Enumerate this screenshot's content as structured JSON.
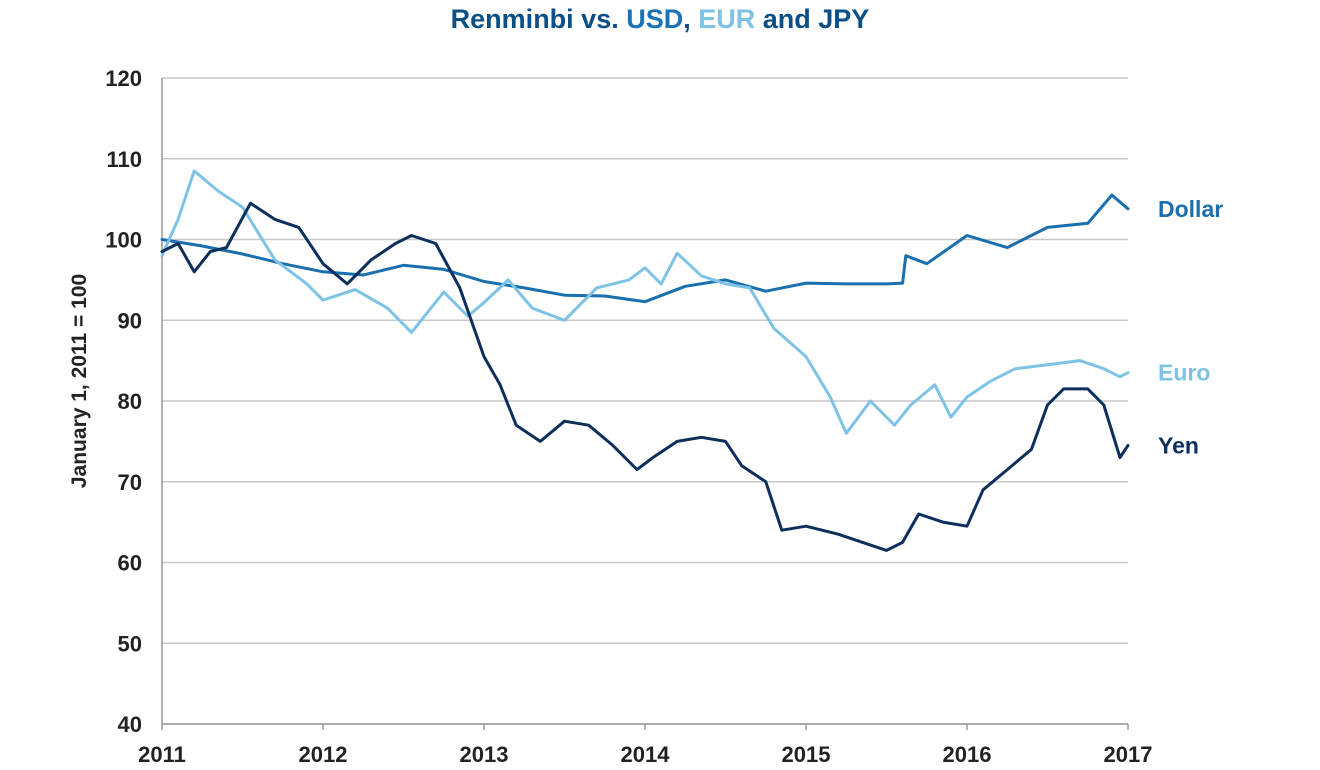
{
  "chart_data": {
    "type": "line",
    "title_parts": [
      {
        "text": "Renminbi vs. ",
        "color": "#0b4f86"
      },
      {
        "text": "USD",
        "color": "#1a73b5"
      },
      {
        "text": ", ",
        "color": "#0b4f86"
      },
      {
        "text": "EUR",
        "color": "#7ec3e6"
      },
      {
        "text": " and JPY",
        "color": "#0b4f86"
      }
    ],
    "ylabel": "January 1, 2011 = 100",
    "xlabel": "",
    "xlim": [
      2011,
      2017
    ],
    "ylim": [
      40,
      120
    ],
    "x_ticks": [
      "2011",
      "2012",
      "2013",
      "2014",
      "2015",
      "2016",
      "2017"
    ],
    "y_ticks": [
      "40",
      "50",
      "60",
      "70",
      "80",
      "90",
      "100",
      "110",
      "120"
    ],
    "grid": "horizontal",
    "legend": "inline-right",
    "series": [
      {
        "name": "Dollar",
        "color": "#1a6fae",
        "x": [
          2011.0,
          2011.25,
          2011.5,
          2011.75,
          2012.0,
          2012.25,
          2012.5,
          2012.75,
          2013.0,
          2013.25,
          2013.5,
          2013.75,
          2014.0,
          2014.25,
          2014.5,
          2014.75,
          2015.0,
          2015.25,
          2015.5,
          2015.6,
          2015.62,
          2015.75,
          2016.0,
          2016.25,
          2016.5,
          2016.75,
          2016.9,
          2017.0
        ],
        "values": [
          100,
          99.2,
          98.2,
          97.0,
          96.0,
          95.6,
          96.8,
          96.3,
          94.8,
          94.0,
          93.1,
          93.0,
          92.3,
          94.2,
          95.0,
          93.6,
          94.6,
          94.5,
          94.5,
          94.6,
          98.0,
          97.0,
          100.5,
          99.0,
          101.5,
          102.0,
          105.5,
          103.8
        ]
      },
      {
        "name": "Euro",
        "color": "#7ec3e6",
        "x": [
          2011.0,
          2011.1,
          2011.2,
          2011.35,
          2011.5,
          2011.7,
          2011.9,
          2012.0,
          2012.2,
          2012.4,
          2012.55,
          2012.75,
          2012.9,
          2013.0,
          2013.15,
          2013.3,
          2013.5,
          2013.7,
          2013.9,
          2014.0,
          2014.1,
          2014.2,
          2014.35,
          2014.5,
          2014.65,
          2014.8,
          2015.0,
          2015.15,
          2015.25,
          2015.4,
          2015.55,
          2015.65,
          2015.8,
          2015.9,
          2016.0,
          2016.15,
          2016.3,
          2016.5,
          2016.7,
          2016.85,
          2016.95,
          2017.0
        ],
        "values": [
          98,
          102.5,
          108.5,
          106,
          104,
          97.5,
          94.5,
          92.5,
          93.8,
          91.5,
          88.5,
          93.5,
          90.5,
          92.2,
          95,
          91.5,
          90,
          94,
          95,
          96.5,
          94.5,
          98.3,
          95.5,
          94.5,
          94,
          89,
          85.5,
          80.5,
          76,
          80,
          77,
          79.5,
          82,
          78,
          80.5,
          82.5,
          84,
          84.5,
          85,
          84,
          83,
          83.5
        ]
      },
      {
        "name": "Yen",
        "color": "#0c2f5c",
        "x": [
          2011.0,
          2011.1,
          2011.2,
          2011.3,
          2011.4,
          2011.55,
          2011.7,
          2011.85,
          2012.0,
          2012.15,
          2012.3,
          2012.45,
          2012.55,
          2012.7,
          2012.85,
          2013.0,
          2013.1,
          2013.2,
          2013.35,
          2013.5,
          2013.65,
          2013.8,
          2013.95,
          2014.05,
          2014.2,
          2014.35,
          2014.5,
          2014.6,
          2014.75,
          2014.85,
          2015.0,
          2015.2,
          2015.35,
          2015.5,
          2015.6,
          2015.7,
          2015.85,
          2016.0,
          2016.1,
          2016.25,
          2016.4,
          2016.5,
          2016.6,
          2016.75,
          2016.85,
          2016.95,
          2017.0
        ],
        "values": [
          98.5,
          99.5,
          96,
          98.5,
          99,
          104.5,
          102.5,
          101.5,
          97,
          94.5,
          97.5,
          99.5,
          100.5,
          99.5,
          94,
          85.5,
          82,
          77,
          75,
          77.5,
          77,
          74.5,
          71.5,
          73,
          75,
          75.5,
          75,
          72,
          70,
          64,
          64.5,
          63.5,
          62.5,
          61.5,
          62.5,
          66,
          65,
          64.5,
          69,
          71.5,
          74,
          79.5,
          81.5,
          81.5,
          79.5,
          73,
          74.5
        ]
      }
    ]
  }
}
